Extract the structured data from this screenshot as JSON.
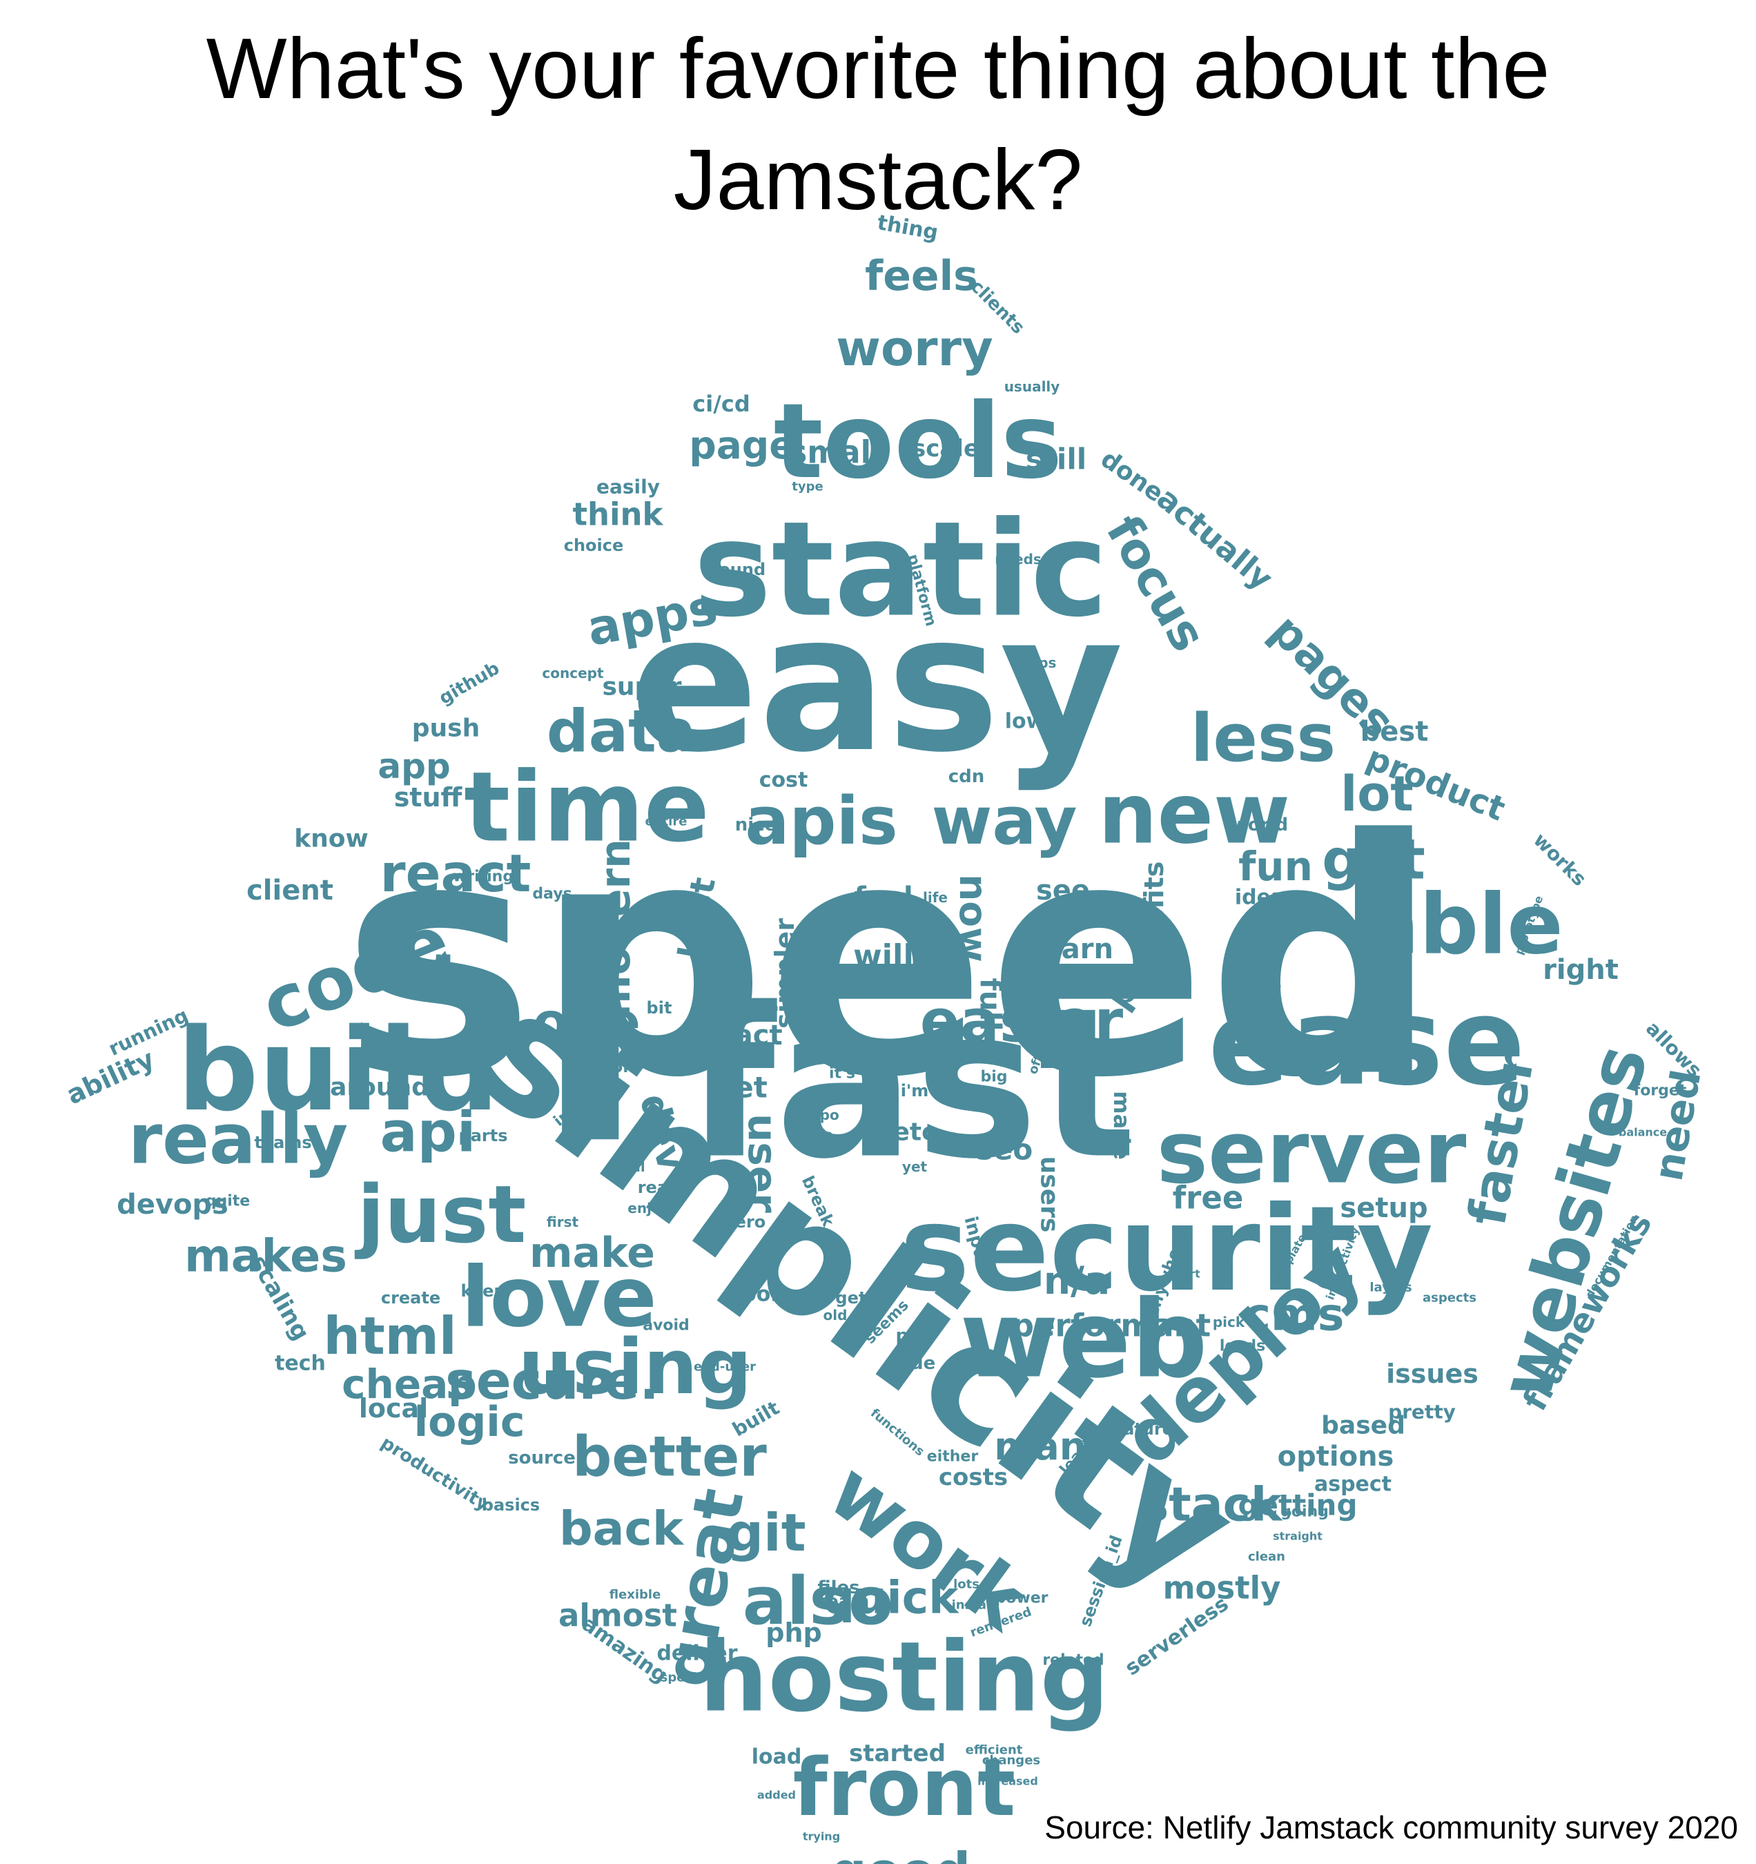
{
  "title": "What's your favorite thing about the Jamstack?",
  "source": "Source: Netlify Jamstack community survey 2020",
  "colors": {
    "word": "#4b8b9b",
    "background": "#ffffff"
  },
  "words": [
    {
      "text": "speed"
    },
    {
      "text": "fast"
    },
    {
      "text": "simplicity"
    },
    {
      "text": "easy"
    },
    {
      "text": "security"
    },
    {
      "text": "static"
    },
    {
      "text": "ease"
    },
    {
      "text": "build"
    },
    {
      "text": "tools"
    },
    {
      "text": "web"
    },
    {
      "text": "time"
    },
    {
      "text": "hosting"
    },
    {
      "text": "server"
    },
    {
      "text": "able"
    },
    {
      "text": "code"
    },
    {
      "text": "new"
    },
    {
      "text": "love"
    },
    {
      "text": "deploy"
    },
    {
      "text": "just"
    },
    {
      "text": "using"
    },
    {
      "text": "front"
    },
    {
      "text": "work"
    },
    {
      "text": "websites"
    },
    {
      "text": "apis"
    },
    {
      "text": "way"
    },
    {
      "text": "less"
    },
    {
      "text": "really"
    },
    {
      "text": "great"
    },
    {
      "text": "also"
    },
    {
      "text": "easier"
    },
    {
      "text": "better"
    },
    {
      "text": "data"
    },
    {
      "text": "secure."
    },
    {
      "text": "good"
    },
    {
      "text": "get"
    },
    {
      "text": "react"
    },
    {
      "text": "html"
    },
    {
      "text": "one"
    },
    {
      "text": "apps"
    },
    {
      "text": "worry"
    },
    {
      "text": "makes"
    },
    {
      "text": "focus"
    },
    {
      "text": "git"
    },
    {
      "text": "back"
    },
    {
      "text": "pages"
    },
    {
      "text": "stack"
    },
    {
      "text": "cms"
    },
    {
      "text": "lot"
    },
    {
      "text": "quick"
    },
    {
      "text": "api"
    },
    {
      "text": "modern"
    },
    {
      "text": "cheap"
    },
    {
      "text": "faster"
    },
    {
      "text": "feels"
    },
    {
      "text": "logic"
    },
    {
      "text": "make"
    },
    {
      "text": "page"
    },
    {
      "text": "fun"
    },
    {
      "text": "now"
    },
    {
      "text": "user"
    },
    {
      "text": "many"
    },
    {
      "text": "n/a"
    },
    {
      "text": "performant"
    },
    {
      "text": "frameworks"
    },
    {
      "text": "need"
    },
    {
      "text": "actually"
    },
    {
      "text": "product"
    },
    {
      "text": "almost"
    },
    {
      "text": "mostly"
    },
    {
      "text": "getting"
    },
    {
      "text": "small"
    },
    {
      "text": "think"
    },
    {
      "text": "client"
    },
    {
      "text": "devops"
    },
    {
      "text": "app"
    },
    {
      "text": "dev"
    },
    {
      "text": "part"
    },
    {
      "text": "options"
    },
    {
      "text": "right"
    },
    {
      "text": "best"
    },
    {
      "text": "setup"
    },
    {
      "text": "issues"
    },
    {
      "text": "free"
    },
    {
      "text": "seo"
    },
    {
      "text": "will"
    },
    {
      "text": "feel"
    },
    {
      "text": "learn"
    },
    {
      "text": "see"
    },
    {
      "text": "fact"
    },
    {
      "text": "set"
    },
    {
      "text": "full"
    },
    {
      "text": "host"
    },
    {
      "text": "simpler"
    },
    {
      "text": "benefits"
    },
    {
      "text": "well"
    },
    {
      "text": "stuff"
    },
    {
      "text": "know"
    },
    {
      "text": "push"
    },
    {
      "text": "super"
    },
    {
      "text": "ability"
    },
    {
      "text": "running"
    },
    {
      "text": "scaling"
    },
    {
      "text": "productivity"
    },
    {
      "text": "local"
    },
    {
      "text": "amazing"
    },
    {
      "text": "deliver"
    },
    {
      "text": "want"
    },
    {
      "text": "started"
    },
    {
      "text": "load"
    },
    {
      "text": "php"
    },
    {
      "text": "team"
    },
    {
      "text": "files"
    },
    {
      "text": "costs"
    },
    {
      "text": "based"
    },
    {
      "text": "aspect"
    },
    {
      "text": "serverless"
    },
    {
      "text": "session_id"
    },
    {
      "text": "scale"
    },
    {
      "text": "still"
    },
    {
      "text": "done"
    },
    {
      "text": "easily"
    },
    {
      "text": "ci/cd"
    },
    {
      "text": "thing"
    },
    {
      "text": "clients"
    },
    {
      "text": "around"
    },
    {
      "text": "tech"
    },
    {
      "text": "users"
    },
    {
      "text": "etc"
    },
    {
      "text": "made"
    },
    {
      "text": "anywhere"
    },
    {
      "text": "source"
    },
    {
      "text": "github"
    },
    {
      "text": "idea"
    },
    {
      "text": "world"
    },
    {
      "text": "pretty"
    },
    {
      "text": "allows"
    },
    {
      "text": "works"
    },
    {
      "text": "cost"
    },
    {
      "text": "high"
    },
    {
      "text": "even"
    },
    {
      "text": "low"
    },
    {
      "text": "cdn"
    },
    {
      "text": "found"
    },
    {
      "text": "keep"
    },
    {
      "text": "cool"
    },
    {
      "text": "side"
    },
    {
      "text": "pull"
    },
    {
      "text": "via"
    },
    {
      "text": "two"
    },
    {
      "text": "input"
    },
    {
      "text": "forget"
    },
    {
      "text": "bit"
    },
    {
      "text": "error"
    },
    {
      "text": "integrate"
    },
    {
      "text": "parts"
    },
    {
      "text": "create"
    },
    {
      "text": "quite"
    },
    {
      "text": "teams"
    },
    {
      "text": "writing"
    },
    {
      "text": "sense"
    },
    {
      "text": "platform"
    },
    {
      "text": "needs"
    },
    {
      "text": "helps"
    },
    {
      "text": "zero"
    },
    {
      "text": "break"
    },
    {
      "text": "gets"
    },
    {
      "text": "loads"
    },
    {
      "text": "related"
    },
    {
      "text": "power"
    },
    {
      "text": "basics"
    },
    {
      "text": "built"
    },
    {
      "text": "happy"
    },
    {
      "text": "prototype"
    },
    {
      "text": "nature"
    },
    {
      "text": "huge"
    },
    {
      "text": "life"
    },
    {
      "text": "days"
    },
    {
      "text": "nice"
    },
    {
      "text": "entire"
    },
    {
      "text": "usually"
    },
    {
      "text": "type"
    },
    {
      "text": "choice"
    },
    {
      "text": "concept"
    },
    {
      "text": "final"
    },
    {
      "text": "real"
    },
    {
      "text": "enjoy"
    },
    {
      "text": "first"
    },
    {
      "text": "end-user"
    },
    {
      "text": "avoid"
    },
    {
      "text": "clean"
    },
    {
      "text": "straight"
    },
    {
      "text": "going"
    },
    {
      "text": "either"
    },
    {
      "text": "least"
    },
    {
      "text": "repo"
    },
    {
      "text": "it's"
    },
    {
      "text": "i'm"
    },
    {
      "text": "yet"
    },
    {
      "text": "big"
    },
    {
      "text": "often"
    },
    {
      "text": "css"
    },
    {
      "text": "short"
    },
    {
      "text": "layers"
    },
    {
      "text": "aspects"
    },
    {
      "text": "old"
    },
    {
      "text": "seems"
    },
    {
      "text": "efficient"
    },
    {
      "text": "changes"
    },
    {
      "text": "increased"
    },
    {
      "text": "trying"
    },
    {
      "text": "added"
    },
    {
      "text": "specific"
    },
    {
      "text": "install"
    },
    {
      "text": "lots"
    },
    {
      "text": "rendered"
    },
    {
      "text": "flexible"
    },
    {
      "text": "functions"
    },
    {
      "text": "pick"
    },
    {
      "text": "future"
    },
    {
      "text": "templates"
    },
    {
      "text": "interactivity"
    },
    {
      "text": "documentation"
    },
    {
      "text": "balance"
    }
  ]
}
